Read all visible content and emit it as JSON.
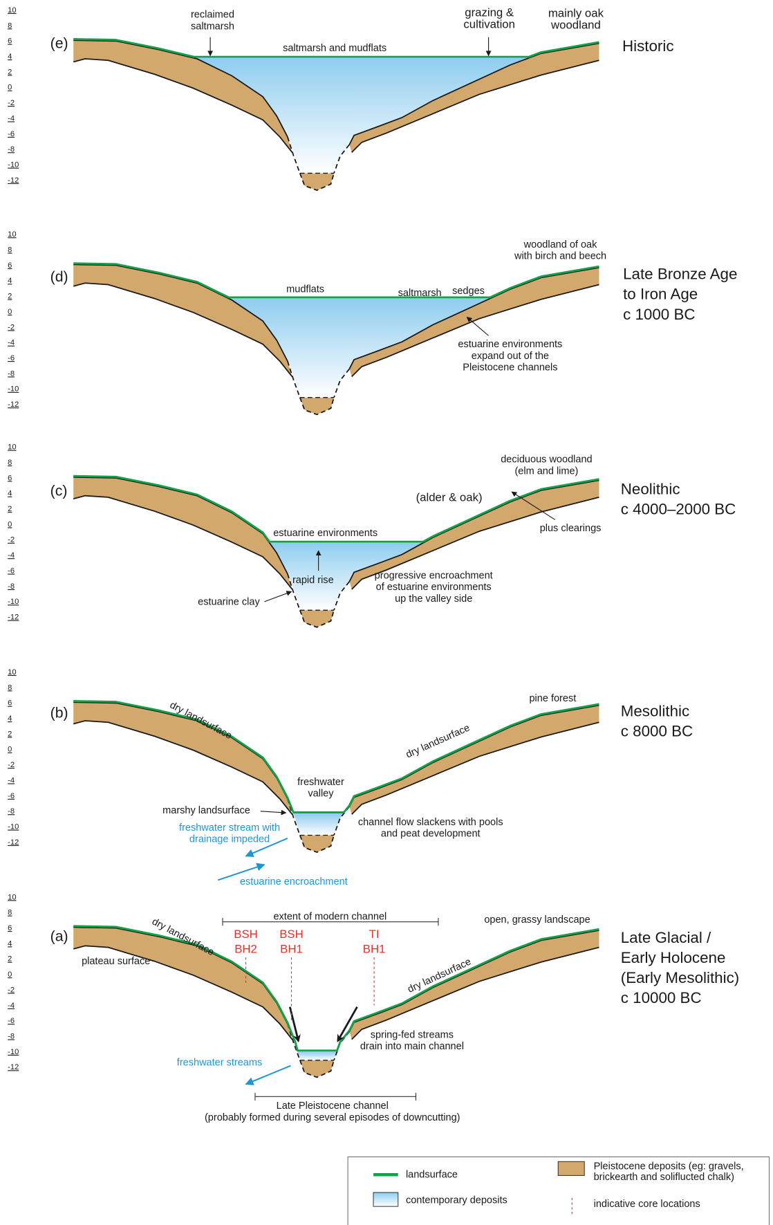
{
  "axis_ticks": [
    "10",
    "8",
    "6",
    "4",
    "2",
    "0",
    "-2",
    "-4",
    "-6",
    "-8",
    "-10",
    "-12"
  ],
  "panels": [
    {
      "label": "(e)",
      "period": [
        "Historic"
      ],
      "notes": [
        [
          "reclaimed",
          "saltmarsh"
        ],
        [
          "saltmarsh and mudflats"
        ],
        [
          "grazing &",
          "cultivation"
        ],
        [
          "mainly oak",
          "woodland"
        ]
      ]
    },
    {
      "label": "(d)",
      "period": [
        "Late Bronze Age",
        "to Iron Age",
        "c 1000 BC"
      ],
      "notes": [
        [
          "mudflats"
        ],
        [
          "saltmarsh"
        ],
        [
          "sedges"
        ],
        [
          "woodland of oak",
          "with birch and beech"
        ],
        [
          "estuarine environments",
          "expand out of the",
          "Pleistocene channels"
        ]
      ]
    },
    {
      "label": "(c)",
      "period": [
        "Neolithic",
        "c 4000–2000 BC"
      ],
      "notes": [
        [
          "estuarine environments"
        ],
        [
          "rapid rise"
        ],
        [
          "estuarine clay"
        ],
        [
          "progressive encroachment",
          "of estuarine environments",
          "up the valley side"
        ],
        [
          "(alder & oak)"
        ],
        [
          "deciduous woodland",
          "(elm and lime)"
        ],
        [
          "plus clearings"
        ]
      ]
    },
    {
      "label": "(b)",
      "period": [
        "Mesolithic",
        "c 8000 BC"
      ],
      "notes": [
        [
          "dry landsurface"
        ],
        [
          "dry landsurface"
        ],
        [
          "pine forest"
        ],
        [
          "freshwater",
          "valley"
        ],
        [
          "marshy landsurface"
        ],
        [
          "channel flow slackens with pools",
          "and peat development"
        ],
        [
          "freshwater stream with",
          "drainage impeded"
        ],
        [
          "estuarine encroachment"
        ]
      ]
    },
    {
      "label": "(a)",
      "period": [
        "Late Glacial /",
        "Early Holocene",
        "(Early Mesolithic)",
        "c 10000 BC"
      ],
      "notes": [
        [
          "extent of modern channel"
        ],
        [
          "open, grassy landscape"
        ],
        [
          "dry landsurface"
        ],
        [
          "plateau surface"
        ],
        [
          "BSH",
          "BH2"
        ],
        [
          "BSH",
          "BH1"
        ],
        [
          "TI",
          "BH1"
        ],
        [
          "dry landsurface"
        ],
        [
          "spring-fed streams",
          "drain into main channel"
        ],
        [
          "freshwater streams"
        ],
        [
          "Late Pleistocene channel",
          "(probably formed during several episodes of downcutting)"
        ]
      ]
    }
  ],
  "legend": {
    "landsurface": "landsurface",
    "contemporary": "contemporary deposits",
    "pleistocene": [
      "Pleistocene deposits (eg: gravels,",
      "brickearth and soliflucted chalk)"
    ],
    "cores": "indicative core locations"
  }
}
